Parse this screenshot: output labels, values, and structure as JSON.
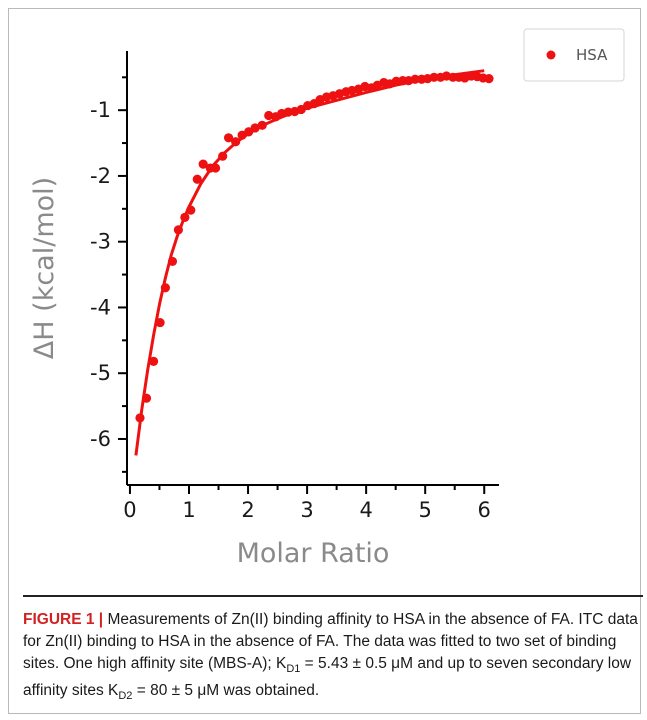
{
  "chart_data": {
    "type": "scatter",
    "xlabel": "Molar Ratio",
    "ylabel": "ΔH (kcal/mol)",
    "xlim": [
      -0.05,
      6.25
    ],
    "ylim": [
      -6.7,
      -0.1
    ],
    "xticks": [
      0,
      1,
      2,
      3,
      4,
      5,
      6
    ],
    "yticks": [
      -1,
      -2,
      -3,
      -4,
      -5,
      -6
    ],
    "legend": "top-right",
    "grid": false,
    "series": [
      {
        "name": "HSA",
        "color": "#ee1111",
        "marker": "circle",
        "x": [
          0.17,
          0.28,
          0.4,
          0.51,
          0.6,
          0.72,
          0.82,
          0.93,
          1.03,
          1.14,
          1.24,
          1.36,
          1.45,
          1.57,
          1.67,
          1.79,
          1.9,
          2.01,
          2.12,
          2.24,
          2.35,
          2.47,
          2.57,
          2.68,
          2.79,
          2.9,
          3.01,
          3.12,
          3.22,
          3.33,
          3.44,
          3.55,
          3.66,
          3.76,
          3.87,
          3.98,
          4.09,
          4.19,
          4.3,
          4.4,
          4.51,
          4.62,
          4.72,
          4.83,
          4.94,
          5.04,
          5.15,
          5.26,
          5.36,
          5.47,
          5.57,
          5.67,
          5.78,
          5.88,
          5.98,
          6.08
        ],
        "y": [
          -5.68,
          -5.38,
          -4.82,
          -4.23,
          -3.7,
          -3.3,
          -2.82,
          -2.63,
          -2.52,
          -2.05,
          -1.82,
          -1.88,
          -1.88,
          -1.7,
          -1.42,
          -1.48,
          -1.38,
          -1.33,
          -1.27,
          -1.23,
          -1.08,
          -1.1,
          -1.05,
          -1.03,
          -1.02,
          -0.99,
          -0.93,
          -0.9,
          -0.84,
          -0.8,
          -0.78,
          -0.75,
          -0.72,
          -0.7,
          -0.68,
          -0.64,
          -0.66,
          -0.62,
          -0.58,
          -0.6,
          -0.56,
          -0.55,
          -0.55,
          -0.53,
          -0.53,
          -0.52,
          -0.5,
          -0.5,
          -0.48,
          -0.5,
          -0.5,
          -0.51,
          -0.48,
          -0.49,
          -0.51,
          -0.52
        ]
      }
    ],
    "fit": {
      "x": [
        0.1,
        0.2,
        0.3,
        0.4,
        0.5,
        0.6,
        0.7,
        0.8,
        0.9,
        1.0,
        1.2,
        1.4,
        1.6,
        1.8,
        2.0,
        2.25,
        2.5,
        2.75,
        3.0,
        3.5,
        4.0,
        4.5,
        5.0,
        5.5,
        6.0
      ],
      "y": [
        -6.25,
        -5.55,
        -4.95,
        -4.42,
        -3.95,
        -3.55,
        -3.2,
        -2.92,
        -2.68,
        -2.47,
        -2.12,
        -1.85,
        -1.65,
        -1.49,
        -1.36,
        -1.23,
        -1.13,
        -1.04,
        -0.97,
        -0.85,
        -0.73,
        -0.62,
        -0.53,
        -0.46,
        -0.4
      ]
    }
  },
  "caption": {
    "label": "FIGURE 1 |",
    "part1": " Measurements of Zn(II) binding affinity to HSA in the absence of FA. ITC data for Zn(II) binding to HSA in the absence of FA. The data was fitted to two set of binding sites. One high affinity site (MBS-A); K",
    "sub1": "D1",
    "part2": " = 5.43 ± 0.5 μM and up to seven secondary low affinity sites K",
    "sub2": "D2",
    "part3": " = 80 ± 5 μM was obtained."
  }
}
